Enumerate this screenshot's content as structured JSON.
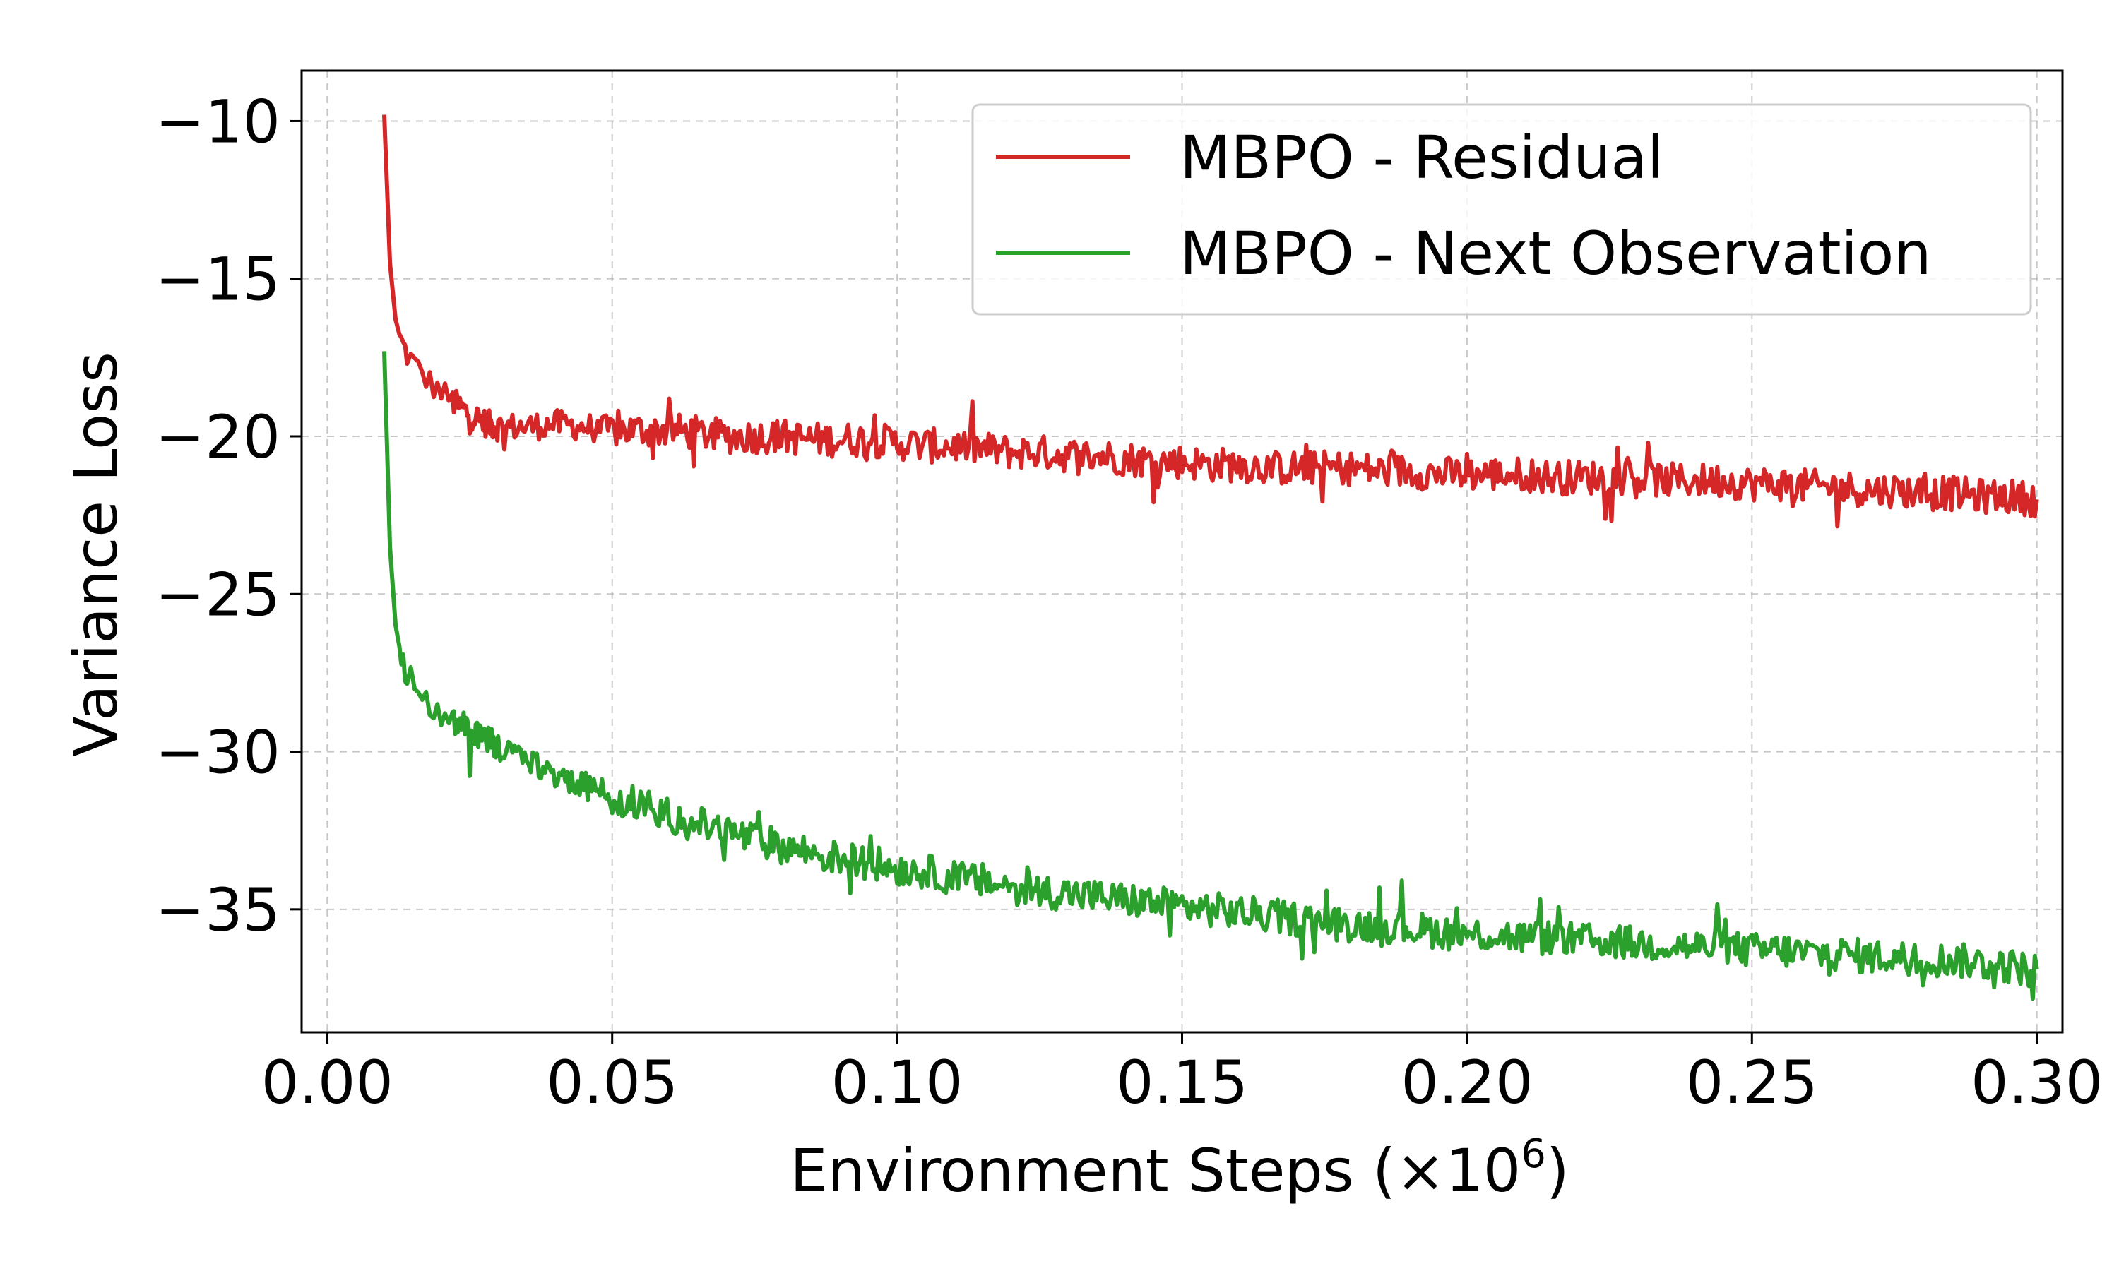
{
  "chart_data": {
    "type": "line",
    "title": "",
    "xlabel": "Environment Steps (×10",
    "xlabel_exponent": "6",
    "xlabel_suffix": ")",
    "ylabel": "Variance Loss",
    "xlim": [
      -0.0045,
      0.3045
    ],
    "ylim": [
      -38.9,
      -8.4
    ],
    "x_ticks": [
      0.0,
      0.05,
      0.1,
      0.15,
      0.2,
      0.25,
      0.3
    ],
    "x_tick_labels": [
      "0.00",
      "0.05",
      "0.10",
      "0.15",
      "0.20",
      "0.25",
      "0.30"
    ],
    "y_ticks": [
      -10,
      -15,
      -20,
      -25,
      -30,
      -35
    ],
    "y_tick_labels": [
      "−10",
      "−15",
      "−20",
      "−25",
      "−30",
      "−35"
    ],
    "grid": true,
    "legend_position": "top-right",
    "series": [
      {
        "name": "MBPO - Residual",
        "color": "#d62728",
        "x": [
          0.01,
          0.011,
          0.012,
          0.013,
          0.014,
          0.016,
          0.018,
          0.02,
          0.022,
          0.025,
          0.028,
          0.03,
          0.035,
          0.04,
          0.045,
          0.05,
          0.055,
          0.06,
          0.065,
          0.07,
          0.075,
          0.08,
          0.085,
          0.09,
          0.095,
          0.1,
          0.105,
          0.11,
          0.115,
          0.12,
          0.125,
          0.13,
          0.135,
          0.14,
          0.145,
          0.15,
          0.155,
          0.16,
          0.165,
          0.17,
          0.175,
          0.18,
          0.185,
          0.19,
          0.195,
          0.2,
          0.205,
          0.21,
          0.215,
          0.22,
          0.225,
          0.23,
          0.235,
          0.24,
          0.245,
          0.25,
          0.255,
          0.26,
          0.265,
          0.27,
          0.275,
          0.28,
          0.285,
          0.29,
          0.295,
          0.3
        ],
        "values": [
          -9.8,
          -14.5,
          -16.3,
          -17.0,
          -17.4,
          -17.9,
          -18.3,
          -18.6,
          -18.9,
          -19.3,
          -19.6,
          -19.7,
          -19.7,
          -19.6,
          -19.7,
          -19.8,
          -19.8,
          -19.8,
          -19.9,
          -20.0,
          -20.0,
          -20.0,
          -20.1,
          -20.1,
          -20.1,
          -20.2,
          -20.3,
          -20.3,
          -20.4,
          -20.5,
          -20.5,
          -20.6,
          -20.6,
          -20.7,
          -20.8,
          -20.8,
          -20.9,
          -20.9,
          -21.0,
          -21.0,
          -21.0,
          -21.0,
          -21.1,
          -21.1,
          -21.2,
          -21.2,
          -21.2,
          -21.2,
          -21.3,
          -21.3,
          -21.3,
          -21.3,
          -21.4,
          -21.4,
          -21.4,
          -21.5,
          -21.5,
          -21.6,
          -21.6,
          -21.7,
          -21.7,
          -21.8,
          -21.8,
          -21.9,
          -21.9,
          -22.0
        ]
      },
      {
        "name": "MBPO - Next Observation",
        "color": "#2ca02c",
        "x": [
          0.01,
          0.011,
          0.012,
          0.013,
          0.014,
          0.016,
          0.018,
          0.02,
          0.022,
          0.025,
          0.028,
          0.03,
          0.035,
          0.04,
          0.045,
          0.05,
          0.055,
          0.06,
          0.065,
          0.07,
          0.075,
          0.08,
          0.085,
          0.09,
          0.095,
          0.1,
          0.105,
          0.11,
          0.115,
          0.12,
          0.125,
          0.13,
          0.135,
          0.14,
          0.145,
          0.15,
          0.155,
          0.16,
          0.165,
          0.17,
          0.175,
          0.18,
          0.185,
          0.19,
          0.195,
          0.2,
          0.205,
          0.21,
          0.215,
          0.22,
          0.225,
          0.23,
          0.235,
          0.24,
          0.245,
          0.25,
          0.255,
          0.26,
          0.265,
          0.27,
          0.275,
          0.28,
          0.285,
          0.29,
          0.295,
          0.3
        ],
        "values": [
          -17.3,
          -23.5,
          -26.0,
          -27.0,
          -27.6,
          -28.1,
          -28.5,
          -28.8,
          -29.0,
          -29.3,
          -29.6,
          -29.8,
          -30.3,
          -30.7,
          -31.1,
          -31.4,
          -31.7,
          -32.0,
          -32.3,
          -32.5,
          -32.8,
          -33.0,
          -33.2,
          -33.4,
          -33.5,
          -33.7,
          -33.8,
          -34.0,
          -34.1,
          -34.3,
          -34.4,
          -34.5,
          -34.6,
          -34.7,
          -34.8,
          -34.9,
          -35.0,
          -35.1,
          -35.2,
          -35.3,
          -35.4,
          -35.5,
          -35.5,
          -35.6,
          -35.7,
          -35.8,
          -35.8,
          -35.9,
          -35.9,
          -36.0,
          -36.0,
          -36.1,
          -36.1,
          -36.2,
          -36.2,
          -36.3,
          -36.3,
          -36.4,
          -36.4,
          -36.5,
          -36.5,
          -36.6,
          -36.6,
          -36.7,
          -36.8,
          -36.9
        ]
      }
    ]
  }
}
